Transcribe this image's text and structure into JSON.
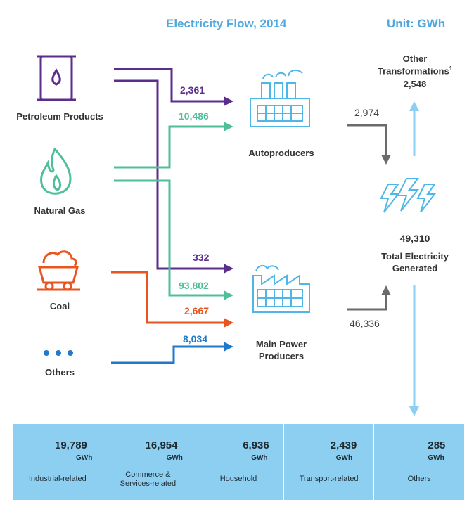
{
  "header": {
    "title": "Electricity Flow, 2014",
    "unit": "Unit: GWh"
  },
  "sources": {
    "petroleum": "Petroleum Products",
    "natural_gas": "Natural Gas",
    "coal": "Coal",
    "others": "Others"
  },
  "producers": {
    "autoproducers": "Autoproducers",
    "main_power_line1": "Main Power",
    "main_power_line2": "Producers"
  },
  "flows": {
    "petroleum_to_auto": "2,361",
    "gas_to_auto": "10,486",
    "petroleum_to_main": "332",
    "gas_to_main": "93,802",
    "coal_to_main": "2,667",
    "others_to_main": "8,034",
    "auto_to_total": "2,974",
    "main_to_total": "46,336"
  },
  "other_transformations": {
    "line1": "Other",
    "line2": "Transformations",
    "superscript": "1",
    "value": "2,548"
  },
  "total": {
    "value": "49,310",
    "line1": "Total Electricity",
    "line2": "Generated"
  },
  "consumption": [
    {
      "value": "19,789",
      "unit": "GWh",
      "label1": "Industrial-related",
      "label2": "",
      "icon": "factory-icon"
    },
    {
      "value": "16,954",
      "unit": "GWh",
      "label1": "Commerce &",
      "label2": "Services-related",
      "icon": "building-icon"
    },
    {
      "value": "6,936",
      "unit": "GWh",
      "label1": "Household",
      "label2": "",
      "icon": "house-icon"
    },
    {
      "value": "2,439",
      "unit": "GWh",
      "label1": "Transport-related",
      "label2": "",
      "icon": "train-icon"
    },
    {
      "value": "285",
      "unit": "GWh",
      "label1": "Others",
      "label2": "",
      "icon": "dots-icon"
    }
  ],
  "colors": {
    "title": "#4fa8de",
    "petroleum": "#5b2d8c",
    "gas": "#4fbf9a",
    "coal": "#e8551f",
    "others": "#1f7ac9",
    "grey": "#6b6b6b",
    "light_blue": "#8dcff1",
    "icon_blue": "#4fb6e8"
  }
}
